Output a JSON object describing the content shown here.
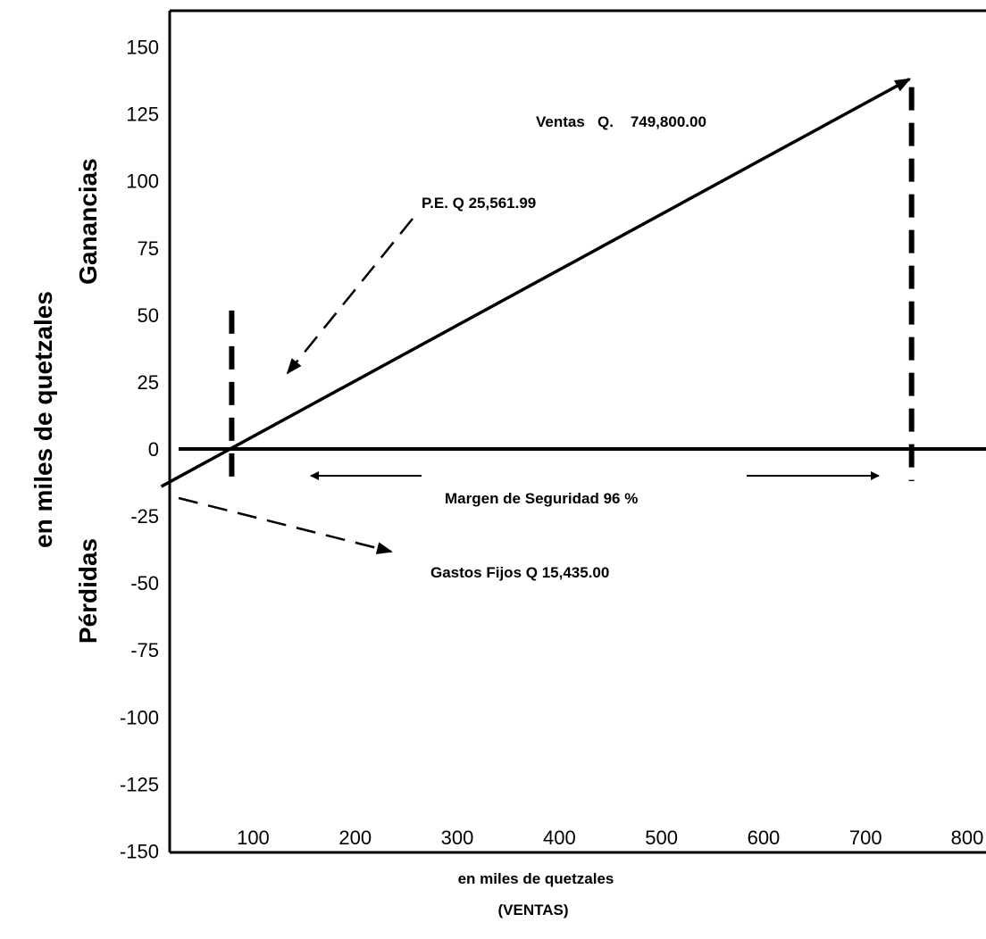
{
  "chart_data": {
    "type": "line",
    "xlabel": "en miles de quetzales",
    "xlabel2": "(VENTAS)",
    "ylabel": "en miles de quetzales",
    "ylabel_upper": "Ganancias",
    "ylabel_lower": "Pérdidas",
    "x_ticks": [
      100,
      200,
      300,
      400,
      500,
      600,
      700,
      800
    ],
    "y_ticks": [
      150,
      125,
      100,
      75,
      50,
      25,
      0,
      -25,
      -50,
      -75,
      -100,
      -125,
      -150
    ],
    "xlim": [
      20,
      810
    ],
    "ylim": [
      -155,
      155
    ],
    "grid": false,
    "series": [
      {
        "name": "Ventas",
        "x": [
          10,
          743
        ],
        "y": [
          -14,
          138
        ]
      }
    ],
    "reference_lines": {
      "zero_line_y": 0,
      "break_even_x": 79,
      "sales_x": 745
    },
    "annotations": {
      "sales": "Ventas   Q.    749,800.00",
      "break_even": "P.E. Q 25,561.99",
      "fixed_costs": "Gastos Fijos Q 15,435.00",
      "safety_margin": "Margen de Seguridad 96 %"
    }
  }
}
